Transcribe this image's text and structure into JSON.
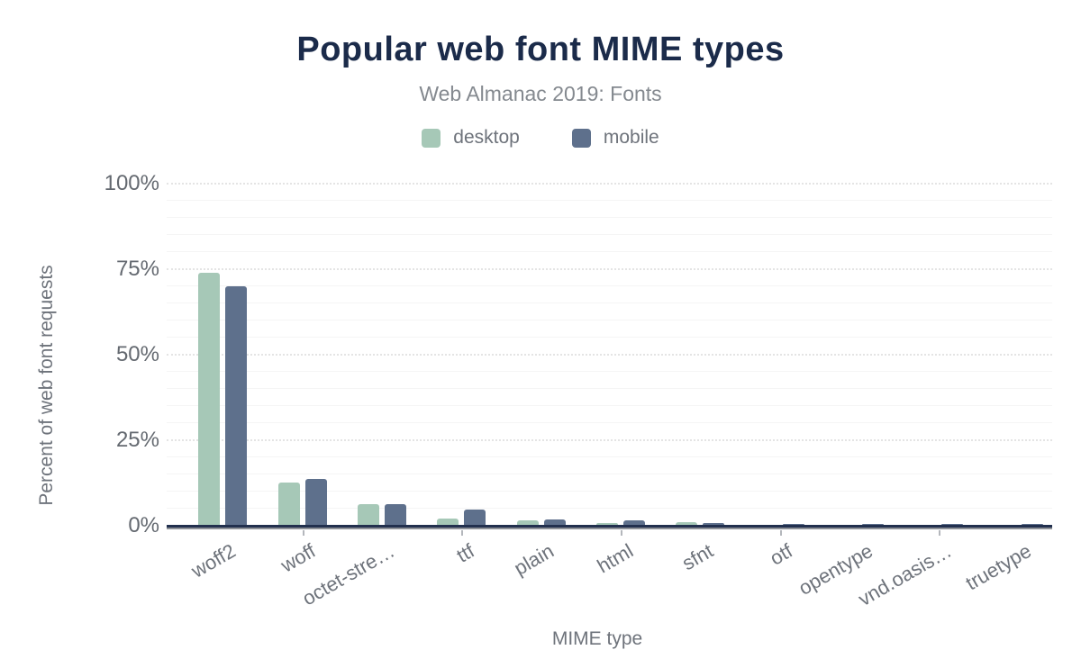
{
  "title": "Popular web font MIME types",
  "subtitle": "Web Almanac 2019: Fonts",
  "y_axis": {
    "title": "Percent of web font requests",
    "ticks": [
      {
        "label": "0%",
        "value": 0
      },
      {
        "label": "25%",
        "value": 25
      },
      {
        "label": "50%",
        "value": 50
      },
      {
        "label": "75%",
        "value": 75
      },
      {
        "label": "100%",
        "value": 100
      }
    ]
  },
  "x_axis": {
    "title": "MIME type"
  },
  "chart_data": {
    "type": "bar",
    "title": "Popular web font MIME types",
    "subtitle": "Web Almanac 2019: Fonts",
    "xlabel": "MIME type",
    "ylabel": "Percent of web font requests",
    "ylim": [
      0,
      100
    ],
    "grid": true,
    "legend_position": "top",
    "categories": [
      "woff2",
      "woff",
      "octet-stre…",
      "ttf",
      "plain",
      "html",
      "sfnt",
      "otf",
      "opentype",
      "vnd.oasis…",
      "truetype"
    ],
    "series": [
      {
        "name": "desktop",
        "color": "#a6c8b7",
        "values": [
          74,
          12.6,
          6.1,
          1.9,
          1.5,
          0.7,
          0.9,
          0.25,
          0.2,
          0.15,
          0.15
        ]
      },
      {
        "name": "mobile",
        "color": "#5e708c",
        "values": [
          70,
          13.6,
          6.3,
          4.6,
          1.8,
          1.35,
          0.7,
          0.5,
          0.5,
          0.45,
          0.5
        ]
      }
    ]
  },
  "colors": {
    "title": "#1b2b4a",
    "subtitle": "#84898f",
    "axis_text": "#6e737b",
    "tick_text": "#646970",
    "axis_line": "#22304e",
    "axis_shadow": "#8d9197",
    "grid_major": "#e4e4e4",
    "grid_minor": "#f5f5f5",
    "background": "#ffffff"
  }
}
